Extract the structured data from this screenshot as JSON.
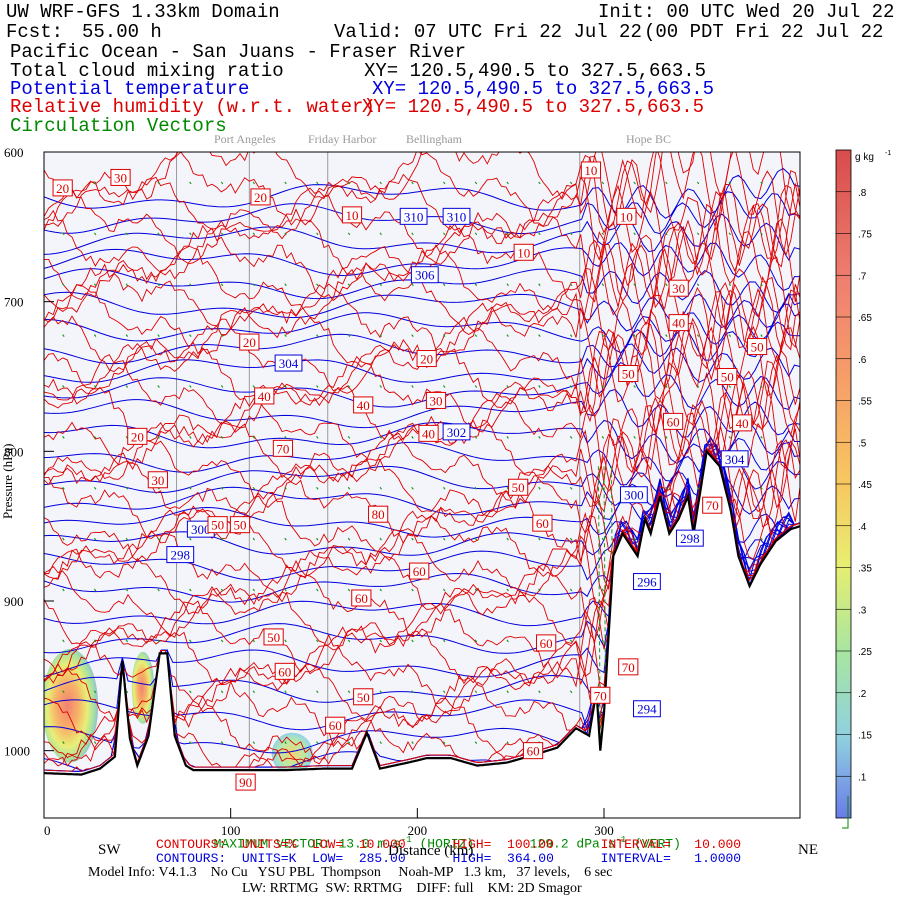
{
  "header": {
    "model": "UW WRF-GFS 1.33km Domain",
    "init": "Init: 00 UTC Wed 20 Jul 22",
    "fcst_label": "Fcst:",
    "fcst_value": "55.00 h",
    "valid": "Valid: 07 UTC Fri 22 Jul 22",
    "valid_local": "(00 PDT Fri 22 Jul 22  )",
    "region": "Pacific Ocean - San Juans - Fraser River"
  },
  "fields": [
    {
      "name": "Total cloud mixing ratio",
      "xy": "XY= 120.5,490.5 to 327.5,663.5",
      "color": "#000000"
    },
    {
      "name": "Potential temperature",
      "xy": "XY= 120.5,490.5 to 327.5,663.5",
      "color": "#0000dd"
    },
    {
      "name": "Relative humidity (w.r.t. water)",
      "xy": "XY= 120.5,490.5 to 327.5,663.5",
      "color": "#dd0000"
    },
    {
      "name": "Circulation Vectors",
      "xy": "",
      "color": "#008800"
    }
  ],
  "chart_data": {
    "type": "cross-section",
    "top_labels": [
      "Port Angeles",
      "Friday Harbor",
      "Bellingham",
      "Hope BC"
    ],
    "top_label_x_km": [
      71,
      110,
      152,
      287
    ],
    "x_ticks": [
      "0",
      "100",
      "200",
      "300"
    ],
    "xlim": [
      0,
      405
    ],
    "y_ticks": [
      "600",
      "700",
      "800",
      "900",
      "1000"
    ],
    "ylim": [
      1045,
      600
    ],
    "ylabel": "Pressure (hPa)",
    "xlabel": "Distance (km)",
    "left_end": "SW",
    "right_end": "NE",
    "theta_levels": [
      284,
      286,
      288,
      290,
      292,
      294,
      296,
      298,
      300,
      302,
      304,
      306,
      308,
      310
    ],
    "theta_labels": [
      {
        "text": "310",
        "x": 198,
        "p": 643
      },
      {
        "text": "310",
        "x": 221,
        "p": 643
      },
      {
        "text": "306",
        "x": 204,
        "p": 682
      },
      {
        "text": "304",
        "x": 131,
        "p": 741
      },
      {
        "text": "302",
        "x": 221,
        "p": 787
      },
      {
        "text": "300",
        "x": 84,
        "p": 852
      },
      {
        "text": "298",
        "x": 73,
        "p": 869
      },
      {
        "text": "300",
        "x": 316,
        "p": 829
      },
      {
        "text": "304",
        "x": 370,
        "p": 805
      },
      {
        "text": "296",
        "x": 323,
        "p": 887
      },
      {
        "text": "298",
        "x": 346,
        "p": 858
      },
      {
        "text": "294",
        "x": 323,
        "p": 972
      }
    ],
    "rh_labels": [
      {
        "text": "20",
        "x": 10,
        "p": 624
      },
      {
        "text": "30",
        "x": 41,
        "p": 617
      },
      {
        "text": "20",
        "x": 116,
        "p": 630
      },
      {
        "text": "10",
        "x": 165,
        "p": 642
      },
      {
        "text": "10",
        "x": 257,
        "p": 667
      },
      {
        "text": "10",
        "x": 293,
        "p": 612
      },
      {
        "text": "10",
        "x": 312,
        "p": 643
      },
      {
        "text": "30",
        "x": 340,
        "p": 691
      },
      {
        "text": "40",
        "x": 340,
        "p": 714
      },
      {
        "text": "50",
        "x": 382,
        "p": 730
      },
      {
        "text": "20",
        "x": 110,
        "p": 727
      },
      {
        "text": "20",
        "x": 205,
        "p": 738
      },
      {
        "text": "50",
        "x": 313,
        "p": 748
      },
      {
        "text": "50",
        "x": 366,
        "p": 750
      },
      {
        "text": "40",
        "x": 118,
        "p": 763
      },
      {
        "text": "40",
        "x": 171,
        "p": 769
      },
      {
        "text": "30",
        "x": 210,
        "p": 766
      },
      {
        "text": "40",
        "x": 206,
        "p": 788
      },
      {
        "text": "60",
        "x": 337,
        "p": 780
      },
      {
        "text": "40",
        "x": 374,
        "p": 781
      },
      {
        "text": "20",
        "x": 50,
        "p": 790
      },
      {
        "text": "70",
        "x": 128,
        "p": 798
      },
      {
        "text": "30",
        "x": 61,
        "p": 819
      },
      {
        "text": "50",
        "x": 254,
        "p": 824
      },
      {
        "text": "70",
        "x": 358,
        "p": 836
      },
      {
        "text": "80",
        "x": 179,
        "p": 842
      },
      {
        "text": "60",
        "x": 267,
        "p": 848
      },
      {
        "text": "50",
        "x": 93,
        "p": 849
      },
      {
        "text": "50",
        "x": 105,
        "p": 849
      },
      {
        "text": "60",
        "x": 201,
        "p": 880
      },
      {
        "text": "60",
        "x": 170,
        "p": 898
      },
      {
        "text": "50",
        "x": 123,
        "p": 924
      },
      {
        "text": "60",
        "x": 269,
        "p": 928
      },
      {
        "text": "60",
        "x": 129,
        "p": 947
      },
      {
        "text": "70",
        "x": 313,
        "p": 944
      },
      {
        "text": "70",
        "x": 298,
        "p": 963
      },
      {
        "text": "50",
        "x": 171,
        "p": 964
      },
      {
        "text": "60",
        "x": 156,
        "p": 983
      },
      {
        "text": "60",
        "x": 262,
        "p": 1000
      },
      {
        "text": "90",
        "x": 108,
        "p": 1021
      }
    ],
    "colorbar": {
      "unit_label": "g kg",
      "ticks": [
        ".1",
        ".15",
        ".2",
        ".25",
        ".3",
        ".35",
        ".4",
        ".45",
        ".5",
        ".55",
        ".6",
        ".65",
        ".7",
        ".75",
        ".8"
      ],
      "range": [
        0.05,
        0.85
      ]
    },
    "rh_contours": {
      "units": "%",
      "low": "10.000",
      "high": "100.00",
      "interval": "10.000",
      "color": "#dd0000"
    },
    "theta_contours": {
      "units": "K",
      "low": "285.00",
      "high": "364.00",
      "interval": "1.0000",
      "color": "#0000dd"
    },
    "max_vector": {
      "horiz": "13.0 m s",
      "vert": "129.2 dPa s"
    }
  },
  "footer": {
    "max_vector_prefix": "MAXIMUM VECTOR:",
    "max_vector_horiz_suffix": "(HORIZ)",
    "max_vector_vert_suffix": "(VERT)",
    "red_line": "CONTOURS:  UNITS=%  LOW=  10.000      HIGH=  100.00      INTERVAL=   10.000",
    "blue_line": "CONTOURS:  UNITS=K  LOW=  285.00      HIGH=  364.00      INTERVAL=   1.0000",
    "model_info": "Model Info: V4.1.3    No Cu   YSU PBL  Thompson     Noah-MP   1.3 km,   37 levels,    6 sec",
    "model_info2": "LW: RRTMG  SW: RRTMG    DIFF: full    KM: 2D Smagor"
  }
}
